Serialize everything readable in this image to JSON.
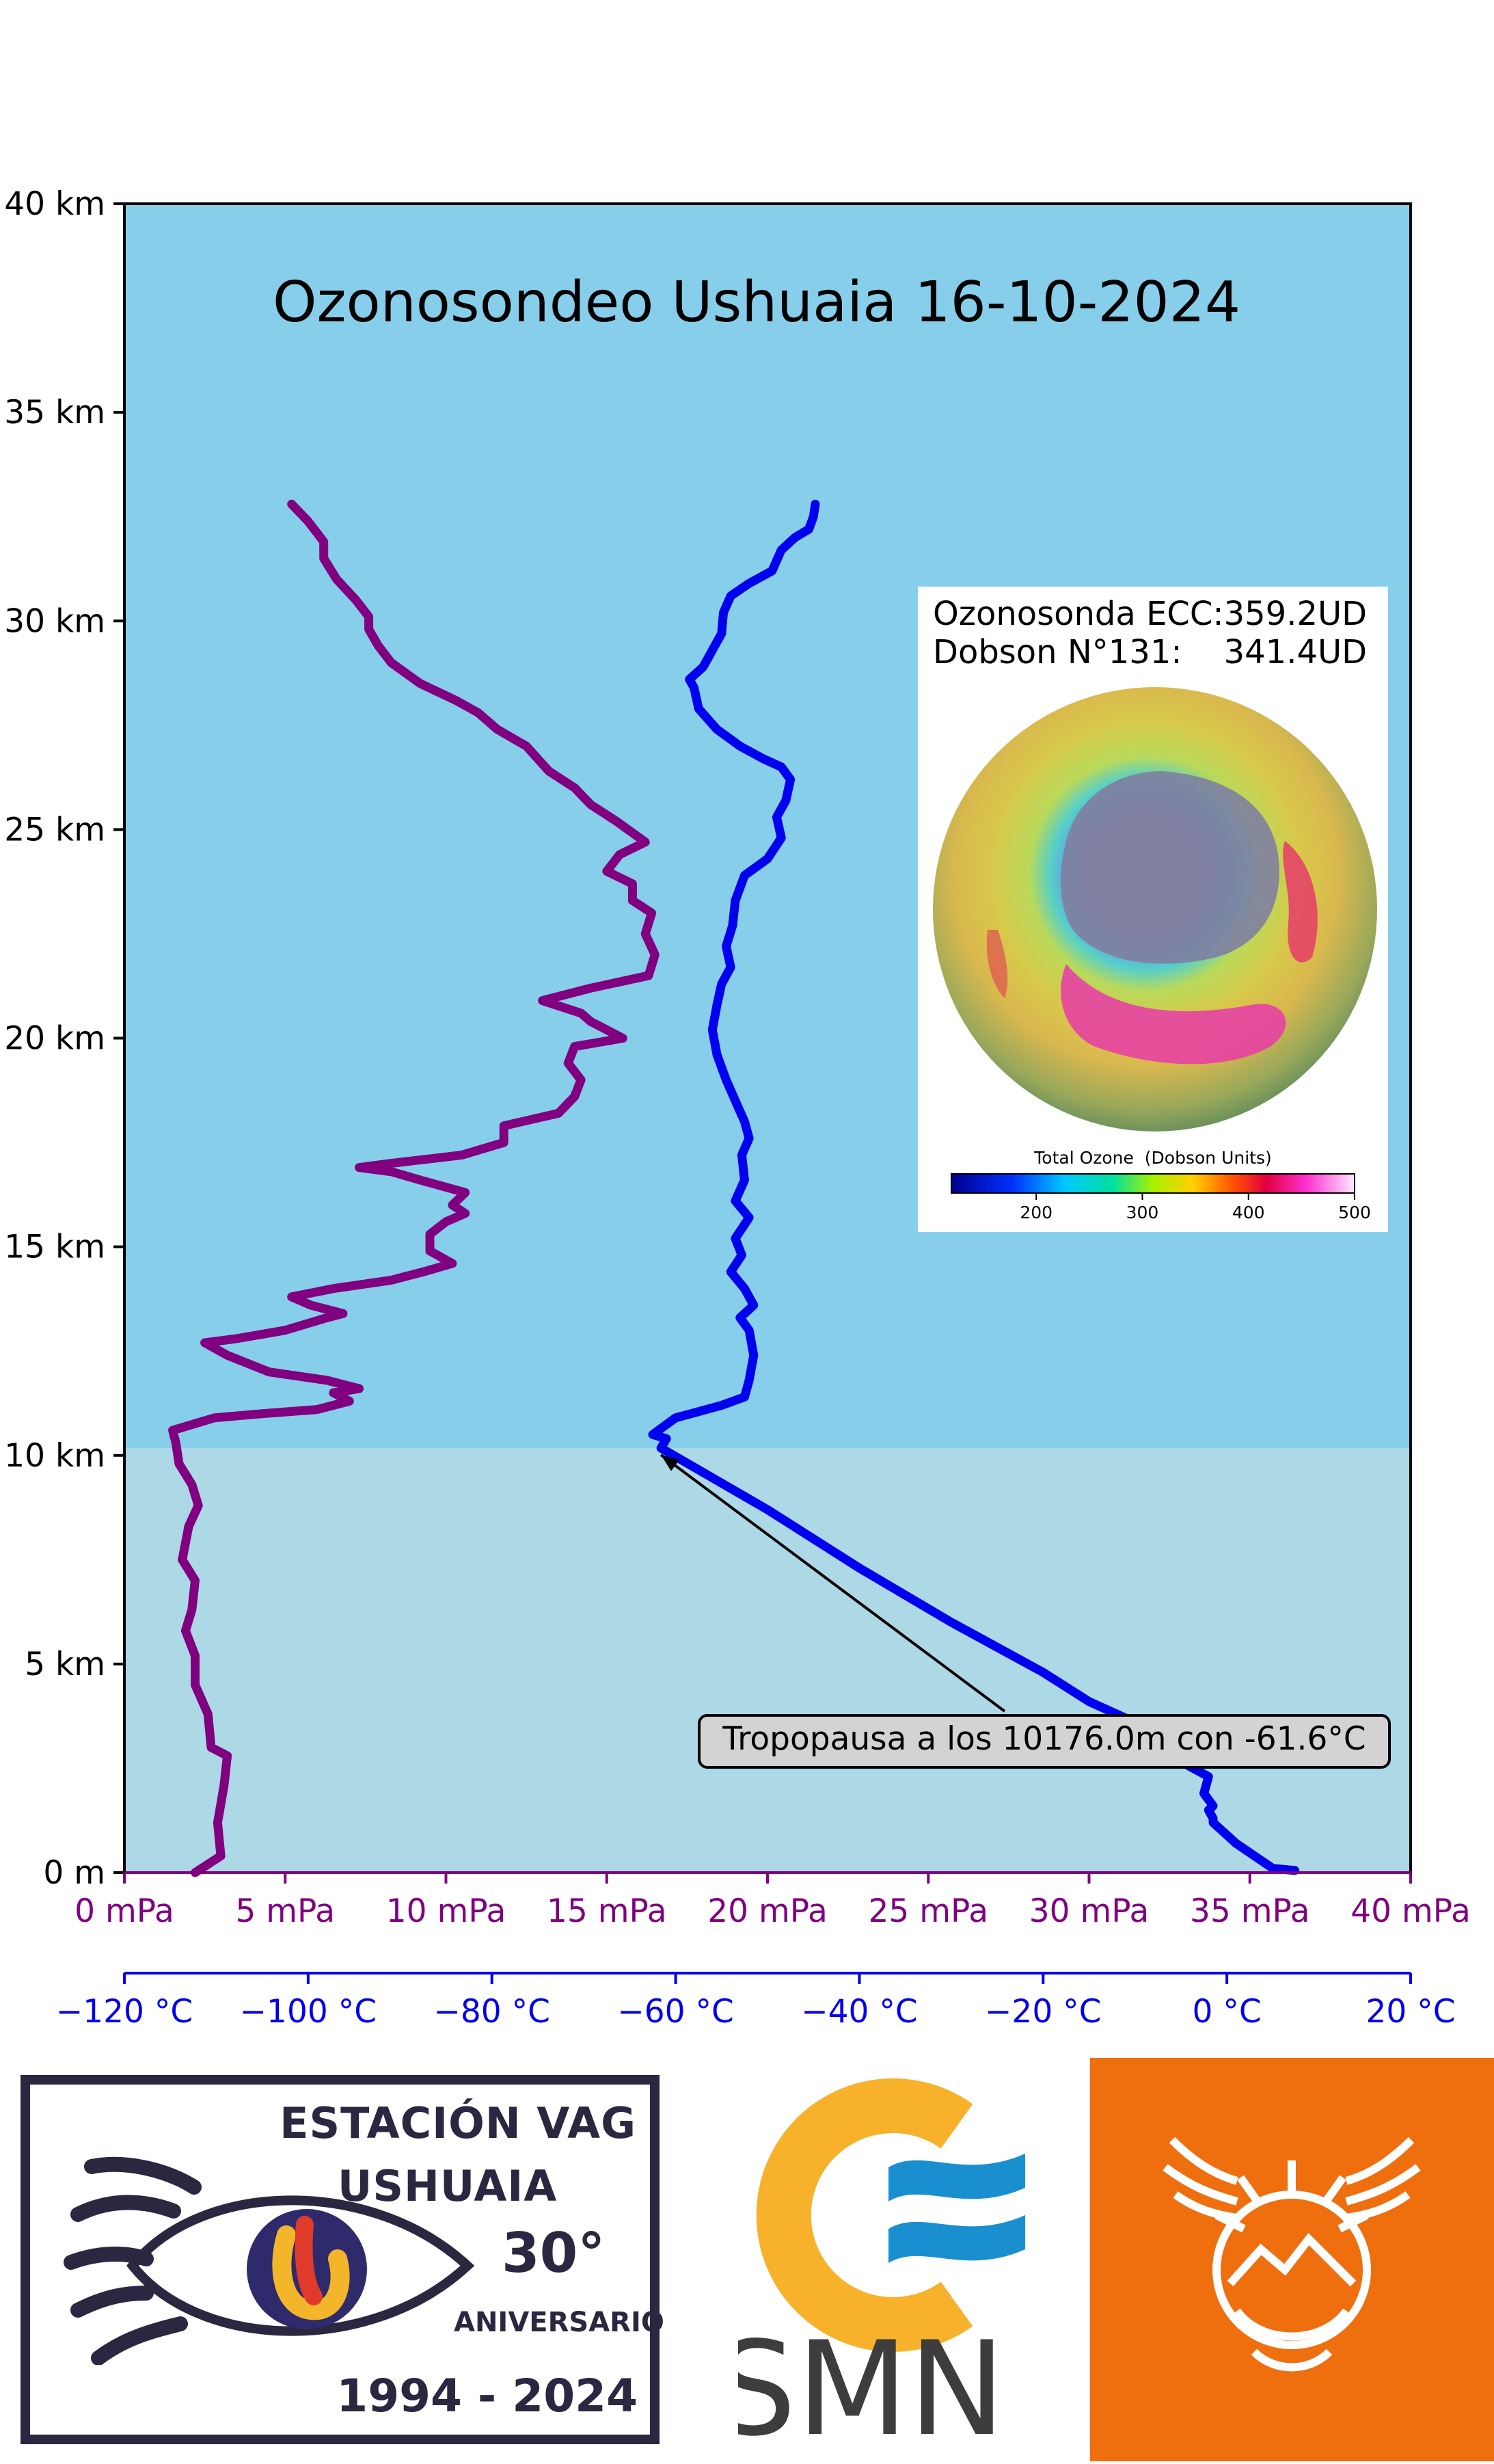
{
  "chart_data": {
    "type": "line",
    "title": "Ozonosondeo Ushuaia 16-10-2024",
    "y_axis": {
      "ticks": [
        "0 m",
        "5 km",
        "10 km",
        "15 km",
        "20 km",
        "25 km",
        "30 km",
        "35 km",
        "40 km"
      ],
      "ylim_km": [
        0,
        40
      ]
    },
    "x_axis_primary": {
      "ticks": [
        "0 mPa",
        "5 mPa",
        "10 mPa",
        "15 mPa",
        "20 mPa",
        "25 mPa",
        "30 mPa",
        "35 mPa",
        "40 mPa"
      ],
      "xlim_mPa": [
        0,
        40
      ],
      "color": "#800080"
    },
    "x_axis_secondary": {
      "ticks": [
        "−120 °C",
        "−100 °C",
        "−80 °C",
        "−60 °C",
        "−40 °C",
        "−20 °C",
        "0 °C",
        "20 °C"
      ],
      "xlim_C": [
        -120,
        20
      ],
      "color": "#0000ee"
    },
    "tropopause_km": 10.176,
    "series": [
      {
        "key": "ozone",
        "unit": "mPa",
        "color": "#800080",
        "points": [
          [
            2.2,
            0
          ],
          [
            3.0,
            0.4
          ],
          [
            2.9,
            1.2
          ],
          [
            3.1,
            2.1
          ],
          [
            3.2,
            2.8
          ],
          [
            2.7,
            3.0
          ],
          [
            2.6,
            3.8
          ],
          [
            2.2,
            4.5
          ],
          [
            2.2,
            5.2
          ],
          [
            1.9,
            5.8
          ],
          [
            2.1,
            6.3
          ],
          [
            2.2,
            7.0
          ],
          [
            1.8,
            7.5
          ],
          [
            2.0,
            8.3
          ],
          [
            2.3,
            8.8
          ],
          [
            2.1,
            9.3
          ],
          [
            1.7,
            9.8
          ],
          [
            1.6,
            10.3
          ],
          [
            1.5,
            10.6
          ],
          [
            2.8,
            10.9
          ],
          [
            4.3,
            11.0
          ],
          [
            6.0,
            11.1
          ],
          [
            7.0,
            11.3
          ],
          [
            6.5,
            11.5
          ],
          [
            7.3,
            11.6
          ],
          [
            6.3,
            11.8
          ],
          [
            4.5,
            12.0
          ],
          [
            3.2,
            12.4
          ],
          [
            2.5,
            12.7
          ],
          [
            3.5,
            12.8
          ],
          [
            5.0,
            13.0
          ],
          [
            6.3,
            13.3
          ],
          [
            6.8,
            13.4
          ],
          [
            5.8,
            13.6
          ],
          [
            5.2,
            13.8
          ],
          [
            6.5,
            14.0
          ],
          [
            8.3,
            14.2
          ],
          [
            9.3,
            14.4
          ],
          [
            10.2,
            14.6
          ],
          [
            9.5,
            14.9
          ],
          [
            9.5,
            15.3
          ],
          [
            10.0,
            15.6
          ],
          [
            10.6,
            15.8
          ],
          [
            10.2,
            16.0
          ],
          [
            10.6,
            16.3
          ],
          [
            9.2,
            16.6
          ],
          [
            8.3,
            16.8
          ],
          [
            7.3,
            16.9
          ],
          [
            8.3,
            17.0
          ],
          [
            10.5,
            17.2
          ],
          [
            11.8,
            17.5
          ],
          [
            11.8,
            17.9
          ],
          [
            13.5,
            18.2
          ],
          [
            14.0,
            18.6
          ],
          [
            14.2,
            19.0
          ],
          [
            13.8,
            19.4
          ],
          [
            14.0,
            19.8
          ],
          [
            15.5,
            20.0
          ],
          [
            14.5,
            20.4
          ],
          [
            14.2,
            20.6
          ],
          [
            13.0,
            20.9
          ],
          [
            14.5,
            21.2
          ],
          [
            16.3,
            21.5
          ],
          [
            16.5,
            22.0
          ],
          [
            16.2,
            22.5
          ],
          [
            16.4,
            23.0
          ],
          [
            15.8,
            23.3
          ],
          [
            15.8,
            23.7
          ],
          [
            15.0,
            24.0
          ],
          [
            15.4,
            24.4
          ],
          [
            16.2,
            24.7
          ],
          [
            15.3,
            25.2
          ],
          [
            14.5,
            25.6
          ],
          [
            14.0,
            26.0
          ],
          [
            13.2,
            26.4
          ],
          [
            12.5,
            27.0
          ],
          [
            11.6,
            27.4
          ],
          [
            11.0,
            27.8
          ],
          [
            10.3,
            28.1
          ],
          [
            9.2,
            28.5
          ],
          [
            8.3,
            29.0
          ],
          [
            7.9,
            29.4
          ],
          [
            7.6,
            29.8
          ],
          [
            7.6,
            30.1
          ],
          [
            7.2,
            30.5
          ],
          [
            6.6,
            31.0
          ],
          [
            6.2,
            31.5
          ],
          [
            6.2,
            31.9
          ],
          [
            5.7,
            32.4
          ],
          [
            5.2,
            32.8
          ]
        ]
      },
      {
        "key": "temperature",
        "unit": "C",
        "color": "#0000ee",
        "points": [
          [
            7.4,
            0.05
          ],
          [
            5.0,
            0.1
          ],
          [
            1.0,
            0.7
          ],
          [
            -1.5,
            1.2
          ],
          [
            -1.5,
            1.3
          ],
          [
            -2.0,
            1.5
          ],
          [
            -1.5,
            1.6
          ],
          [
            -2.5,
            1.9
          ],
          [
            -2.0,
            2.3
          ],
          [
            -4.5,
            2.6
          ],
          [
            -7.0,
            3.1
          ],
          [
            -9.0,
            3.4
          ],
          [
            -11.0,
            3.7
          ],
          [
            -15.0,
            4.1
          ],
          [
            -20.0,
            4.8
          ],
          [
            -30.0,
            6.0
          ],
          [
            -40.0,
            7.3
          ],
          [
            -50.0,
            8.7
          ],
          [
            -61.6,
            10.176
          ],
          [
            -61.0,
            10.4
          ],
          [
            -62.5,
            10.5
          ],
          [
            -60.0,
            10.9
          ],
          [
            -55.0,
            11.2
          ],
          [
            -52.5,
            11.4
          ],
          [
            -52.0,
            11.8
          ],
          [
            -51.5,
            12.4
          ],
          [
            -52.0,
            13.0
          ],
          [
            -53.0,
            13.3
          ],
          [
            -51.5,
            13.6
          ],
          [
            -52.5,
            14.0
          ],
          [
            -54.0,
            14.4
          ],
          [
            -52.8,
            14.8
          ],
          [
            -53.5,
            15.2
          ],
          [
            -52.0,
            15.7
          ],
          [
            -53.5,
            16.1
          ],
          [
            -52.5,
            16.6
          ],
          [
            -52.8,
            17.2
          ],
          [
            -52.0,
            17.6
          ],
          [
            -52.5,
            18.0
          ],
          [
            -53.5,
            18.5
          ],
          [
            -54.5,
            19.0
          ],
          [
            -55.5,
            19.6
          ],
          [
            -56.0,
            20.2
          ],
          [
            -55.5,
            20.8
          ],
          [
            -55.0,
            21.3
          ],
          [
            -54.0,
            21.7
          ],
          [
            -54.5,
            22.2
          ],
          [
            -53.8,
            22.7
          ],
          [
            -53.5,
            23.3
          ],
          [
            -52.5,
            23.9
          ],
          [
            -50.0,
            24.3
          ],
          [
            -48.5,
            24.8
          ],
          [
            -49.0,
            25.3
          ],
          [
            -48.0,
            25.7
          ],
          [
            -47.5,
            26.2
          ],
          [
            -48.5,
            26.5
          ],
          [
            -50.5,
            26.7
          ],
          [
            -53.0,
            27.0
          ],
          [
            -55.5,
            27.4
          ],
          [
            -57.5,
            27.9
          ],
          [
            -58.0,
            28.4
          ],
          [
            -58.5,
            28.6
          ],
          [
            -57.0,
            28.9
          ],
          [
            -56.0,
            29.3
          ],
          [
            -55.0,
            29.7
          ],
          [
            -54.8,
            30.2
          ],
          [
            -54.0,
            30.6
          ],
          [
            -52.0,
            30.9
          ],
          [
            -49.5,
            31.2
          ],
          [
            -48.5,
            31.7
          ],
          [
            -47.0,
            32.0
          ],
          [
            -45.5,
            32.2
          ],
          [
            -45.0,
            32.5
          ],
          [
            -44.8,
            32.8
          ]
        ]
      }
    ],
    "annotation": {
      "text": "Tropopausa a los 10176.0m con -61.6°C"
    },
    "inset": {
      "line1": "Ozonosonda ECC:359.2UD",
      "line2": "Dobson N°131:    341.4UD",
      "colorbar_label": "Total Ozone  (Dobson Units)",
      "colorbar_ticks": [
        "200",
        "300",
        "400",
        "500"
      ]
    },
    "colors": {
      "stratosphere_bg": "#87ceeb",
      "troposphere_bg": "#add8e6"
    }
  },
  "logos": {
    "vag": {
      "line1": "ESTACIÓN VAG",
      "line2": "USHUAIA",
      "degree": "30°",
      "aniv": "ANIVERSARIO",
      "years": "1994 - 2024"
    },
    "smn": {
      "text": "SMN"
    }
  }
}
